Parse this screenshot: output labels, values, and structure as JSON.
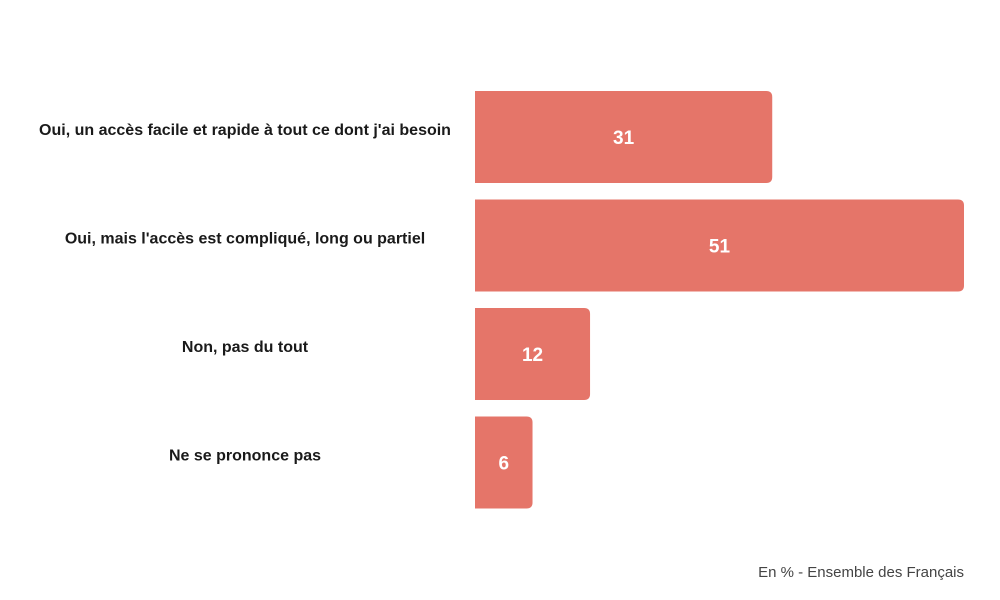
{
  "chart_data": {
    "type": "bar",
    "orientation": "horizontal",
    "categories": [
      "Oui, un accès facile et rapide à tout ce dont j'ai besoin",
      "Oui, mais l'accès est compliqué, long ou partiel",
      "Non, pas du tout",
      "Ne se prononce pas"
    ],
    "values": [
      31,
      51,
      12,
      6
    ],
    "value_labels": [
      "31",
      "51",
      "12",
      "6"
    ],
    "bar_color": "#e57569",
    "grid": false,
    "legend": "none"
  },
  "footnote": "En % - Ensemble des Français"
}
